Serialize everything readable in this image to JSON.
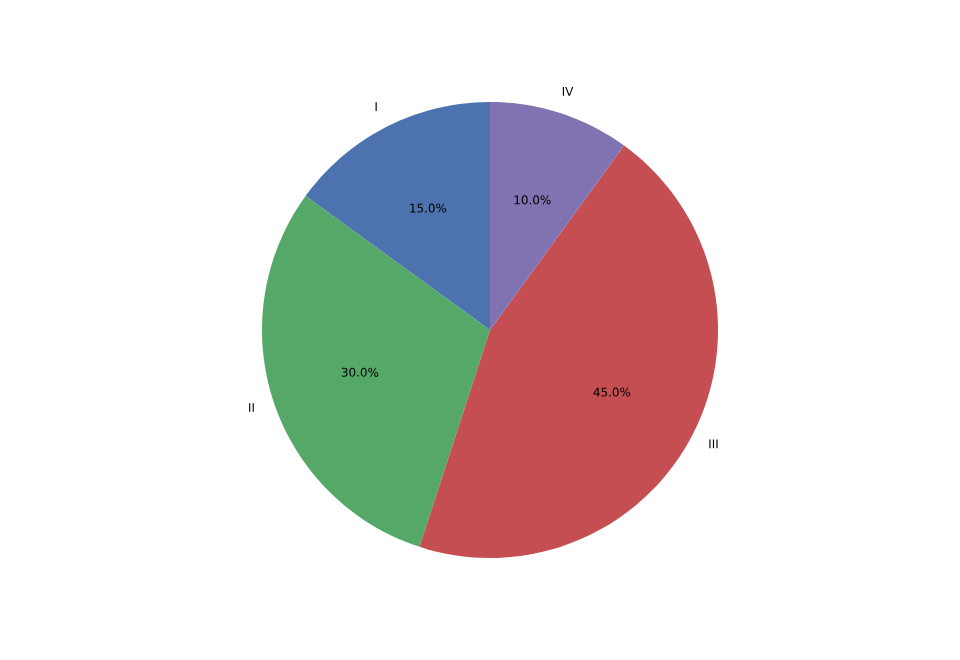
{
  "chart_data": {
    "type": "pie",
    "categories": [
      "I",
      "II",
      "III",
      "IV"
    ],
    "values": [
      15,
      30,
      45,
      10
    ],
    "value_labels": [
      "15.0%",
      "30.0%",
      "45.0%",
      "10.0%"
    ],
    "colors": [
      "#4c72b0",
      "#55a868",
      "#c44e52",
      "#8172b2"
    ]
  }
}
